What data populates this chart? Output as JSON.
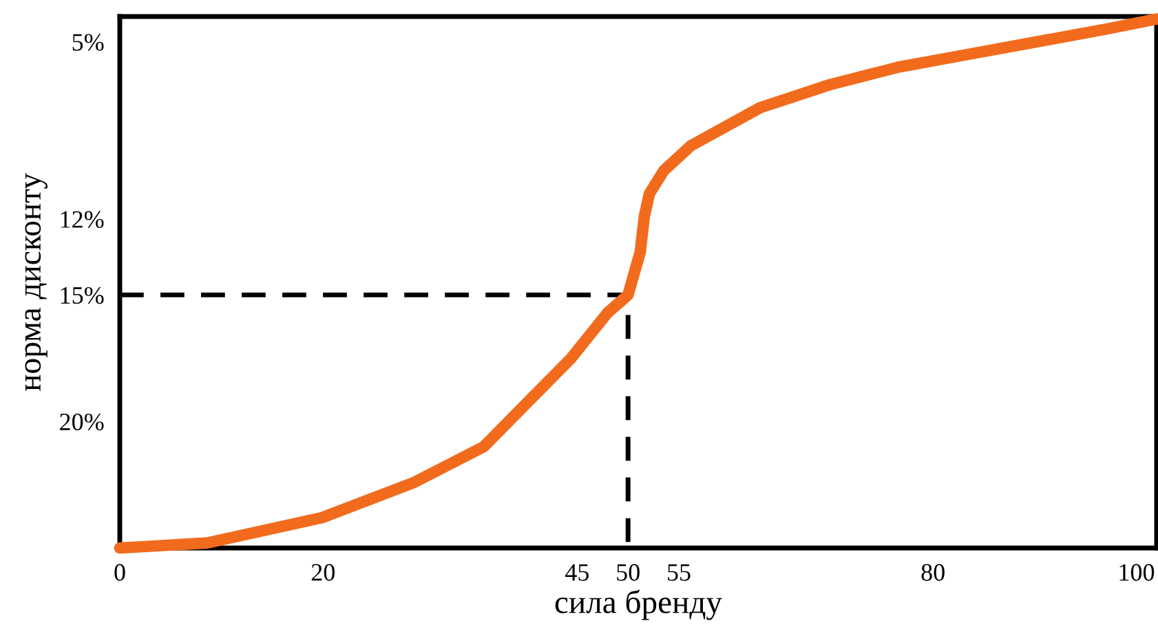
{
  "chart_data": {
    "type": "line",
    "xlabel": "сила бренду",
    "ylabel": "норма дисконту",
    "xlim": [
      0,
      102
    ],
    "xticks": [
      0,
      20,
      45,
      50,
      55,
      80,
      100
    ],
    "ylim": [
      25,
      4
    ],
    "yticks": [
      {
        "value": 5,
        "label": "5%"
      },
      {
        "value": 12,
        "label": "12%"
      },
      {
        "value": 15,
        "label": "15%"
      },
      {
        "value": 20,
        "label": "20%"
      }
    ],
    "grid": false,
    "legend": false,
    "series": [
      {
        "color": "#f26b1d",
        "line_style": "solid",
        "x": [
          0,
          8.6,
          19.9,
          29.0,
          35.8,
          44.4,
          48.0,
          50,
          51.2,
          51.6,
          52.1,
          53.5,
          56.2,
          63.0,
          69.8,
          76.6,
          83.4,
          90.2,
          97.0,
          102
        ],
        "values": [
          25,
          24.8,
          23.8,
          22.4,
          21.0,
          17.5,
          15.7,
          15,
          13.3,
          11.9,
          11.0,
          10.1,
          9.1,
          7.6,
          6.7,
          6.0,
          5.5,
          5.0,
          4.5,
          4.1
        ]
      },
      {
        "color": "#000000",
        "line_style": "dashed",
        "x": [
          0,
          50,
          50
        ],
        "values": [
          15,
          15,
          25
        ]
      }
    ]
  }
}
